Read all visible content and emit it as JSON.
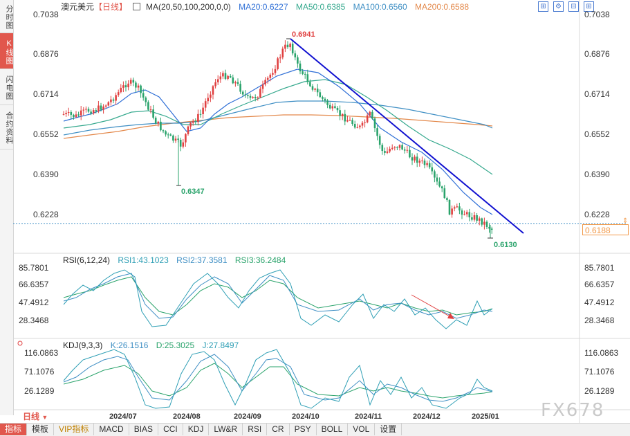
{
  "sidebar": {
    "tabs": [
      {
        "label": "分时图",
        "active": false
      },
      {
        "label": "K线图",
        "active": true
      },
      {
        "label": "闪电图",
        "active": false
      },
      {
        "label": "合约资料",
        "active": false
      }
    ]
  },
  "header": {
    "symbol": "澳元美元",
    "period_tag": "【日线】",
    "ma_label": "MA(20,50,100,200,0,0)",
    "ma20": "MA20:0.6227",
    "ma50": "MA50:0.6385",
    "ma100": "MA100:0.6560",
    "ma200": "MA200:0.6588"
  },
  "toolbar_icons": [
    "grid-toggle-icon",
    "settings-icon",
    "zoom-out-icon",
    "zoom-in-icon"
  ],
  "price_axis": {
    "ticks": [
      "0.7038",
      "0.6876",
      "0.6714",
      "0.6552",
      "0.6390",
      "0.6228"
    ],
    "current_price": "0.6188",
    "high_label": "0.6941",
    "low_label": "0.6347",
    "recent_low_label": "0.6130"
  },
  "rsi": {
    "title": "RSI(6,12,24)",
    "rsi1": "RSI1:43.1023",
    "rsi2": "RSI2:37.3581",
    "rsi3": "RSI3:36.2484",
    "ticks": [
      "85.7801",
      "66.6357",
      "47.4912",
      "28.3468"
    ]
  },
  "kdj": {
    "title": "KDJ(9,3,3)",
    "k": "K:26.1516",
    "d": "D:25.3025",
    "j": "J:27.8497",
    "ticks": [
      "116.0863",
      "71.1076",
      "26.1289"
    ]
  },
  "x_axis": {
    "labels": [
      "2024/07",
      "2024/08",
      "2024/09",
      "2024/10",
      "2024/11",
      "2024/12",
      "2025/01"
    ]
  },
  "bottom_bar": {
    "period": "日线",
    "tabs": [
      {
        "label": "指标",
        "active": true,
        "vip": false
      },
      {
        "label": "模板",
        "active": false,
        "vip": false
      },
      {
        "label": "VIP指标",
        "active": false,
        "vip": true
      },
      {
        "label": "MACD",
        "active": false,
        "vip": false
      },
      {
        "label": "BIAS",
        "active": false,
        "vip": false
      },
      {
        "label": "CCI",
        "active": false,
        "vip": false
      },
      {
        "label": "KDJ",
        "active": false,
        "vip": false
      },
      {
        "label": "LW&R",
        "active": false,
        "vip": false
      },
      {
        "label": "RSI",
        "active": false,
        "vip": false
      },
      {
        "label": "CR",
        "active": false,
        "vip": false
      },
      {
        "label": "PSY",
        "active": false,
        "vip": false
      },
      {
        "label": "BOLL",
        "active": false,
        "vip": false
      },
      {
        "label": "VOL",
        "active": false,
        "vip": false
      },
      {
        "label": "设置",
        "active": false,
        "vip": false
      }
    ]
  },
  "watermark": "FX678",
  "colors": {
    "up": "#e04040",
    "down": "#2aa36b",
    "ma20": "#2f6fd6",
    "ma50": "#36a98e",
    "ma100": "#3f8fc4",
    "ma200": "#e3884a",
    "trendline": "#1010d0",
    "accent": "#e1574d"
  }
}
